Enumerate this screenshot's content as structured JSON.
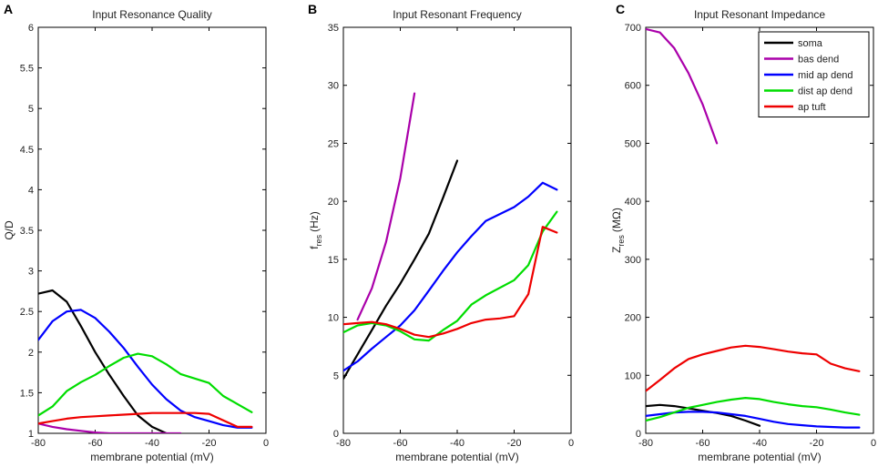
{
  "chart_data": [
    {
      "panel": "A",
      "type": "line",
      "title": "Input Resonance Quality",
      "xlabel": "membrane potential (mV)",
      "ylabel": "Q/D",
      "xlim": [
        -80,
        0
      ],
      "ylim": [
        1,
        6
      ],
      "xticks": [
        -80,
        -60,
        -40,
        -20,
        0
      ],
      "xtick_labels": [
        "-80",
        "-60",
        "-40",
        "-20",
        "0"
      ],
      "yticks": [
        1,
        1.5,
        2,
        2.5,
        3,
        3.5,
        4,
        4.5,
        5,
        5.5,
        6
      ],
      "ytick_labels": [
        "1",
        "1.5",
        "2",
        "2.5",
        "3",
        "3.5",
        "4",
        "4.5",
        "5",
        "5.5",
        "6"
      ],
      "series": [
        {
          "name": "soma",
          "color": "#000000",
          "x": [
            -80,
            -75,
            -70,
            -65,
            -60,
            -55,
            -50,
            -45,
            -40,
            -35
          ],
          "y": [
            2.72,
            2.76,
            2.62,
            2.32,
            2.0,
            1.72,
            1.46,
            1.22,
            1.08,
            1.0
          ]
        },
        {
          "name": "bas dend",
          "color": "#aa00aa",
          "x": [
            -80,
            -75,
            -70,
            -65,
            -60,
            -55,
            -50,
            -45,
            -40,
            -35,
            -30
          ],
          "y": [
            1.12,
            1.08,
            1.05,
            1.03,
            1.01,
            1.0,
            1.0,
            1.0,
            1.0,
            1.0,
            1.0
          ]
        },
        {
          "name": "mid ap dend",
          "color": "#0000ff",
          "x": [
            -80,
            -75,
            -70,
            -65,
            -60,
            -55,
            -50,
            -45,
            -40,
            -35,
            -30,
            -25,
            -20,
            -15,
            -10,
            -5
          ],
          "y": [
            2.15,
            2.38,
            2.5,
            2.52,
            2.42,
            2.25,
            2.05,
            1.82,
            1.6,
            1.42,
            1.28,
            1.2,
            1.15,
            1.1,
            1.07,
            1.07
          ]
        },
        {
          "name": "dist ap dend",
          "color": "#00dd00",
          "x": [
            -80,
            -75,
            -70,
            -65,
            -60,
            -55,
            -50,
            -45,
            -40,
            -35,
            -30,
            -20,
            -15,
            -10,
            -5
          ],
          "y": [
            1.22,
            1.33,
            1.52,
            1.63,
            1.72,
            1.83,
            1.93,
            1.98,
            1.95,
            1.85,
            1.73,
            1.62,
            1.46,
            1.36,
            1.26
          ]
        },
        {
          "name": "ap tuft",
          "color": "#ee0000",
          "x": [
            -80,
            -75,
            -70,
            -65,
            -60,
            -55,
            -50,
            -45,
            -40,
            -35,
            -30,
            -25,
            -20,
            -15,
            -10,
            -5
          ],
          "y": [
            1.12,
            1.15,
            1.18,
            1.2,
            1.21,
            1.22,
            1.23,
            1.24,
            1.25,
            1.25,
            1.25,
            1.25,
            1.24,
            1.16,
            1.08,
            1.08
          ]
        }
      ]
    },
    {
      "panel": "B",
      "type": "line",
      "title": "Input Resonant Frequency",
      "xlabel": "membrane potential (mV)",
      "ylabel_main": "f",
      "ylabel_sub": "res",
      "ylabel_unit": "(Hz)",
      "xlim": [
        -80,
        0
      ],
      "ylim": [
        0,
        35
      ],
      "xticks": [
        -80,
        -60,
        -40,
        -20,
        0
      ],
      "xtick_labels": [
        "-80",
        "-60",
        "-40",
        "-20",
        "0"
      ],
      "yticks": [
        0,
        5,
        10,
        15,
        20,
        25,
        30,
        35
      ],
      "ytick_labels": [
        "0",
        "5",
        "10",
        "15",
        "20",
        "25",
        "30",
        "35"
      ],
      "series": [
        {
          "name": "soma",
          "color": "#000000",
          "x": [
            -80,
            -75,
            -70,
            -65,
            -60,
            -55,
            -50,
            -45,
            -40
          ],
          "y": [
            4.7,
            6.8,
            8.9,
            11.0,
            12.9,
            15.0,
            17.2,
            20.3,
            23.5
          ]
        },
        {
          "name": "bas dend",
          "color": "#aa00aa",
          "x": [
            -75,
            -70,
            -65,
            -60,
            -55
          ],
          "y": [
            9.8,
            12.5,
            16.5,
            22.0,
            29.3
          ]
        },
        {
          "name": "mid ap dend",
          "color": "#0000ff",
          "x": [
            -80,
            -75,
            -70,
            -65,
            -60,
            -55,
            -50,
            -45,
            -40,
            -35,
            -30,
            -20,
            -15,
            -10,
            -5
          ],
          "y": [
            5.4,
            6.2,
            7.3,
            8.3,
            9.3,
            10.6,
            12.3,
            14.0,
            15.6,
            17.0,
            18.3,
            19.5,
            20.4,
            21.6,
            21.0
          ]
        },
        {
          "name": "dist ap dend",
          "color": "#00dd00",
          "x": [
            -80,
            -75,
            -70,
            -65,
            -60,
            -55,
            -50,
            -45,
            -40,
            -35,
            -30,
            -20,
            -15,
            -10,
            -5
          ],
          "y": [
            8.7,
            9.3,
            9.5,
            9.3,
            8.8,
            8.1,
            8.0,
            8.9,
            9.7,
            11.1,
            11.9,
            13.2,
            14.5,
            17.4,
            19.1
          ]
        },
        {
          "name": "ap tuft",
          "color": "#ee0000",
          "x": [
            -80,
            -75,
            -70,
            -65,
            -60,
            -55,
            -50,
            -45,
            -40,
            -35,
            -30,
            -25,
            -20,
            -15,
            -10,
            -5
          ],
          "y": [
            9.4,
            9.5,
            9.6,
            9.4,
            9.0,
            8.5,
            8.3,
            8.6,
            9.0,
            9.5,
            9.8,
            9.9,
            10.1,
            12.0,
            17.8,
            17.3
          ]
        }
      ]
    },
    {
      "panel": "C",
      "type": "line",
      "title": "Input Resonant Impedance",
      "xlabel": "membrane potential (mV)",
      "ylabel_main": "Z",
      "ylabel_sub": "res",
      "ylabel_unit": "(MΩ)",
      "xlim": [
        -80,
        0
      ],
      "ylim": [
        0,
        700
      ],
      "xticks": [
        -80,
        -60,
        -40,
        -20,
        0
      ],
      "xtick_labels": [
        "-80",
        "-60",
        "-40",
        "-20",
        "0"
      ],
      "yticks": [
        0,
        100,
        200,
        300,
        400,
        500,
        600,
        700
      ],
      "ytick_labels": [
        "0",
        "100",
        "200",
        "300",
        "400",
        "500",
        "600",
        "700"
      ],
      "legend": "top-right",
      "series": [
        {
          "name": "soma",
          "color": "#000000",
          "x": [
            -80,
            -75,
            -70,
            -65,
            -60,
            -55,
            -50,
            -45,
            -40
          ],
          "y": [
            47,
            49,
            47,
            43,
            39,
            35,
            30,
            22,
            13
          ]
        },
        {
          "name": "bas dend",
          "color": "#aa00aa",
          "x": [
            -80,
            -75,
            -70,
            -65,
            -60,
            -55
          ],
          "y": [
            697,
            691,
            664,
            621,
            567,
            500
          ]
        },
        {
          "name": "mid ap dend",
          "color": "#0000ff",
          "x": [
            -80,
            -75,
            -70,
            -65,
            -60,
            -55,
            -50,
            -45,
            -40,
            -35,
            -30,
            -25,
            -20,
            -15,
            -10,
            -5
          ],
          "y": [
            30,
            33,
            36,
            37,
            37,
            36,
            33,
            30,
            25,
            20,
            16,
            14,
            12,
            11,
            10,
            10
          ]
        },
        {
          "name": "dist ap dend",
          "color": "#00dd00",
          "x": [
            -80,
            -75,
            -70,
            -65,
            -60,
            -55,
            -50,
            -45,
            -40,
            -35,
            -30,
            -25,
            -20,
            -15,
            -10,
            -5
          ],
          "y": [
            22,
            28,
            36,
            44,
            49,
            54,
            58,
            61,
            59,
            54,
            50,
            47,
            45,
            41,
            36,
            32
          ]
        },
        {
          "name": "ap tuft",
          "color": "#ee0000",
          "x": [
            -80,
            -75,
            -70,
            -65,
            -60,
            -55,
            -50,
            -45,
            -40,
            -35,
            -30,
            -25,
            -20,
            -15,
            -10,
            -5
          ],
          "y": [
            73,
            92,
            112,
            128,
            136,
            142,
            148,
            151,
            149,
            145,
            141,
            138,
            136,
            120,
            112,
            107
          ]
        }
      ]
    }
  ]
}
